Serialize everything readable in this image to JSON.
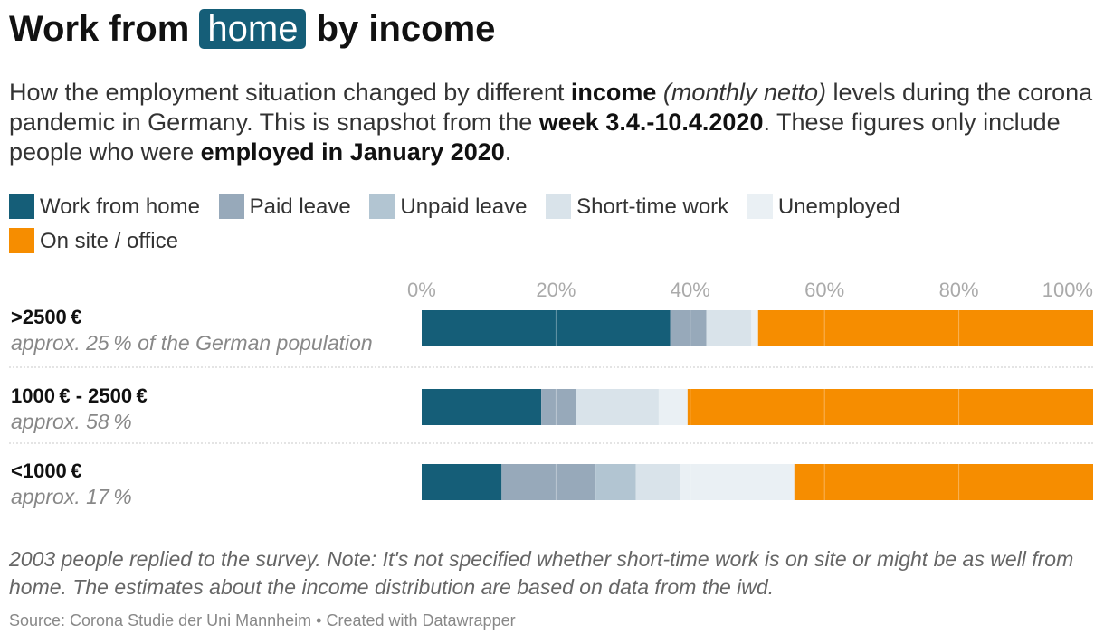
{
  "header": {
    "title_before": "Work from",
    "title_highlight": "home",
    "title_after": "by income",
    "subtitle": {
      "p1": "How the employment situation changed by different ",
      "b1": "income",
      "i1": "(monthly netto)",
      "p2": " levels during the corona pandemic in Germany. This is snapshot from the ",
      "b2": "week 3.4.-10.4.2020",
      "p3": ". These figures only include people who were ",
      "b3": "employed in January 2020",
      "p4": "."
    }
  },
  "legend": [
    {
      "label": "Work from home",
      "color": "#155e78"
    },
    {
      "label": "Paid leave",
      "color": "#97a9ba"
    },
    {
      "label": "Unpaid leave",
      "color": "#b2c5d2"
    },
    {
      "label": "Short-time work",
      "color": "#d9e3ea"
    },
    {
      "label": "Unemployed",
      "color": "#eaf0f4"
    },
    {
      "label": "On site / office",
      "color": "#f68d00"
    }
  ],
  "chart_data": {
    "type": "bar",
    "orientation": "horizontal-stacked",
    "xlim": [
      0,
      100
    ],
    "x_ticks": [
      "0%",
      "20%",
      "40%",
      "60%",
      "80%",
      "100%"
    ],
    "grid": true,
    "categories": [
      {
        "label": ">2500 €",
        "sublabel": "approx. 25 % of the German population"
      },
      {
        "label": "1000 € - 2500 €",
        "sublabel": "approx. 58 %"
      },
      {
        "label": "<1000 €",
        "sublabel": "approx. 17 %"
      }
    ],
    "series": [
      {
        "name": "Work from home",
        "color": "#155e78",
        "values": [
          37,
          17.8,
          11.9
        ]
      },
      {
        "name": "Paid leave",
        "color": "#97a9ba",
        "values": [
          5.4,
          5.2,
          14.0
        ]
      },
      {
        "name": "Unpaid leave",
        "color": "#b2c5d2",
        "values": [
          0,
          0,
          6.0
        ]
      },
      {
        "name": "Short-time work",
        "color": "#d9e3ea",
        "values": [
          6.7,
          12.3,
          6.6
        ]
      },
      {
        "name": "Unemployed",
        "color": "#eaf0f4",
        "values": [
          1.0,
          4.3,
          17.0
        ]
      },
      {
        "name": "On site / office",
        "color": "#f68d00",
        "values": [
          49.9,
          60.4,
          44.5
        ]
      }
    ]
  },
  "footer": {
    "notes": "2003 people replied to the survey. Note: It's not specified whether short-time work is on site or might be as well from home. The estimates about the income distribution are based on data from the iwd.",
    "source": "Source: Corona Studie der Uni Mannheim • Created with Datawrapper"
  }
}
